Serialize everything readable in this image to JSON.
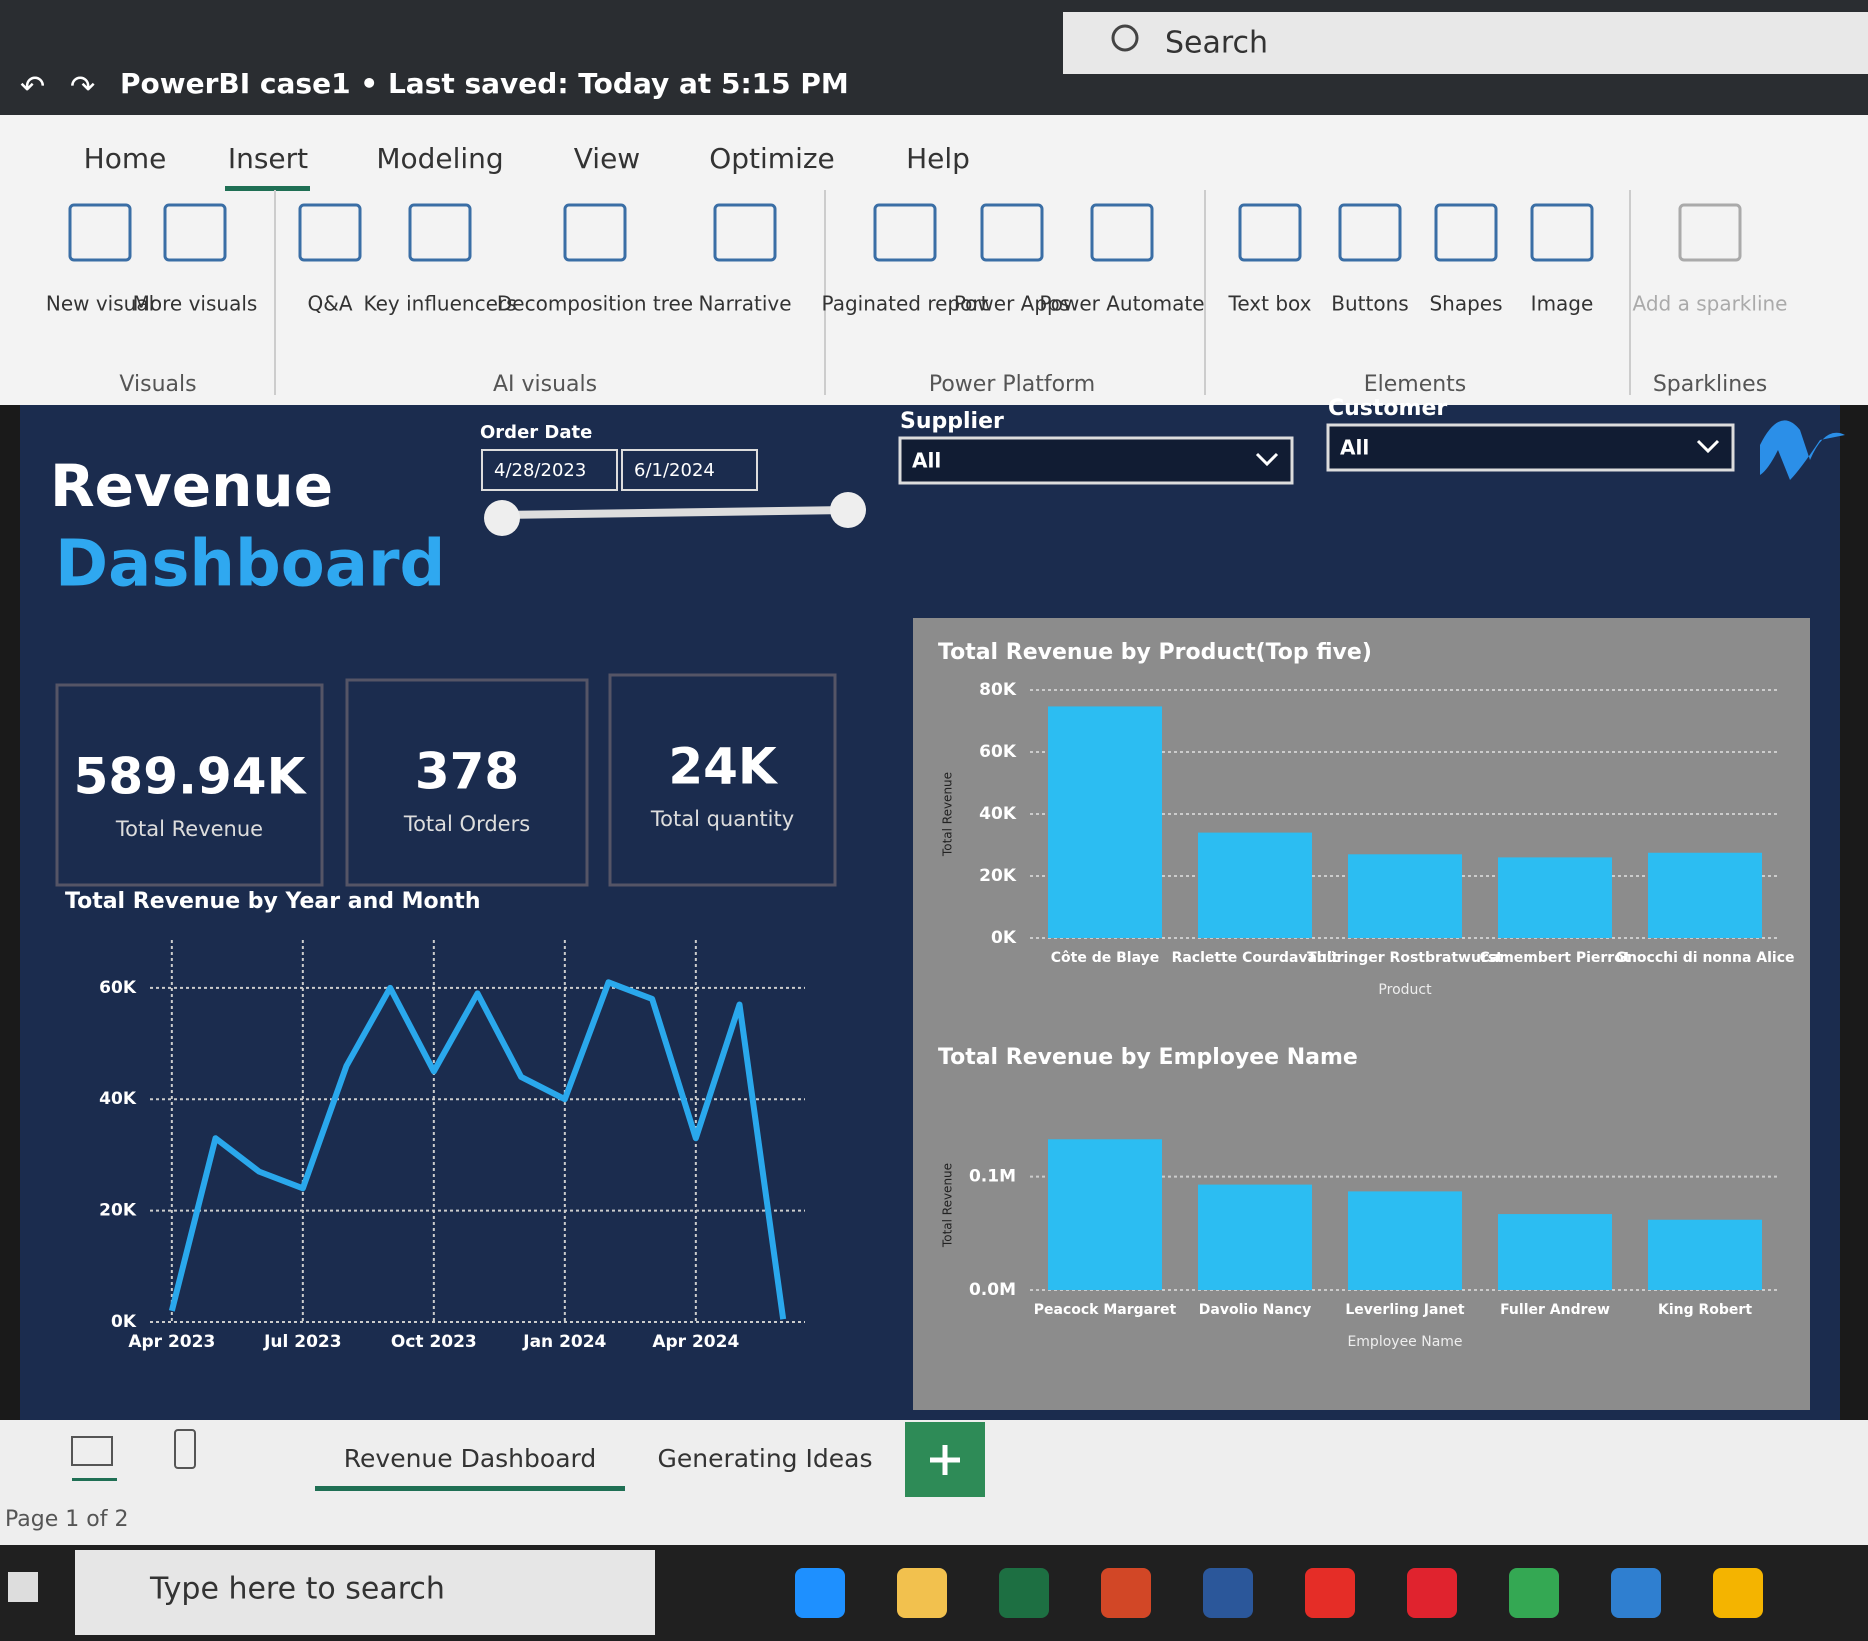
{
  "title_bar": {
    "document": "PowerBI case1 • Last saved: Today at 5:15 PM",
    "search": "Search"
  },
  "ribbon": {
    "tabs": [
      "Home",
      "Insert",
      "Modeling",
      "View",
      "Optimize",
      "Help"
    ],
    "groups": [
      {
        "label": "Visuals",
        "items": [
          "New visual",
          "More visuals"
        ]
      },
      {
        "label": "AI visuals",
        "items": [
          "Q&A",
          "Key influencers",
          "Decomposition tree",
          "Narrative"
        ]
      },
      {
        "label": "Power Platform",
        "items": [
          "Paginated report",
          "Power Apps",
          "Power Automate"
        ]
      },
      {
        "label": "Elements",
        "items": [
          "Text box",
          "Buttons",
          "Shapes",
          "Image"
        ]
      },
      {
        "label": "Sparklines",
        "items": [
          "Add a sparkline"
        ]
      }
    ]
  },
  "dashboard": {
    "title_line1": "Revenue",
    "title_line2": "Dashboard",
    "order_date": {
      "label": "Order Date",
      "start": "4/28/2023",
      "end": "6/1/2024"
    },
    "supplier": {
      "label": "Supplier",
      "value": "All"
    },
    "customer": {
      "label": "Customer",
      "value": "All"
    },
    "cards": [
      {
        "value": "589.94K",
        "label": "Total Revenue"
      },
      {
        "value": "378",
        "label": "Total Orders"
      },
      {
        "value": "24K",
        "label": "Total quantity"
      }
    ]
  },
  "chart_data": [
    {
      "type": "line",
      "title": "Total Revenue by Year and Month",
      "categories": [
        "Apr 2023",
        null,
        null,
        "Jul 2023",
        null,
        null,
        "Oct 2023",
        null,
        null,
        "Jan 2024",
        null,
        null,
        "Apr 2024",
        null,
        null
      ],
      "values": [
        2000,
        33000,
        27000,
        24000,
        46000,
        60000,
        45000,
        59000,
        44000,
        40000,
        61000,
        58000,
        33000,
        57000,
        500
      ],
      "color": "#2aa8ec",
      "ylim": [
        0,
        65000
      ],
      "yticks": [
        {
          "value": 0,
          "label": "0K"
        },
        {
          "value": 20000,
          "label": "20K"
        },
        {
          "value": 40000,
          "label": "40K"
        },
        {
          "value": 60000,
          "label": "60K"
        }
      ],
      "grid": true
    },
    {
      "type": "bar",
      "title": "Total Revenue by Product(Top five)",
      "categories": [
        "Côte de Blaye",
        "Raclette Courdavault",
        "Thüringer Rostbratwurst",
        "Camembert Pierrot",
        "Gnocchi di nonna Alice"
      ],
      "values": [
        74700,
        34000,
        27000,
        26000,
        27500
      ],
      "color": "#2cbdf2",
      "ylim": [
        0,
        80000
      ],
      "yticks": [
        {
          "value": 0,
          "label": "0K"
        },
        {
          "value": 20000,
          "label": "20K"
        },
        {
          "value": 40000,
          "label": "40K"
        },
        {
          "value": 60000,
          "label": "60K"
        },
        {
          "value": 80000,
          "label": "80K"
        }
      ],
      "x_label": "Product",
      "y_label": "Total Revenue",
      "grid": true
    },
    {
      "type": "bar",
      "title": "Total Revenue by Employee Name",
      "categories": [
        "Peacock Margaret",
        "Davolio Nancy",
        "Leverling Janet",
        "Fuller Andrew",
        "King Robert"
      ],
      "values": [
        133000,
        93000,
        87000,
        67000,
        62000
      ],
      "color": "#2cbdf2",
      "ylim": [
        0,
        150000
      ],
      "yticks": [
        {
          "value": 0,
          "label": "0.0M"
        },
        {
          "value": 100000,
          "label": "0.1M"
        }
      ],
      "x_label": "Employee Name",
      "y_label": "Total Revenue",
      "grid": true
    }
  ],
  "page_tabs": [
    "Revenue Dashboard",
    "Generating Ideas"
  ],
  "status": "Page 1 of 2",
  "taskbar_search": "Type here to search"
}
